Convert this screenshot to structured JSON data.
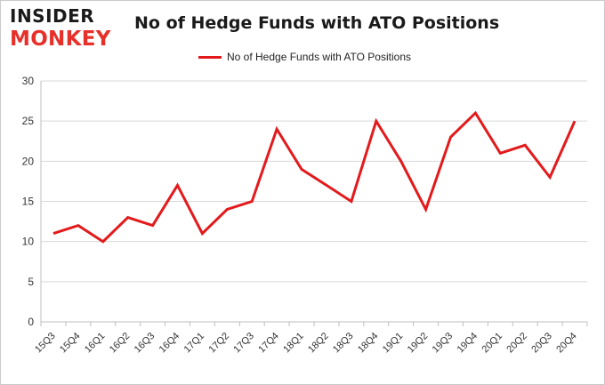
{
  "brand": {
    "logo_top": "INSIDER",
    "logo_bottom": "MONKEY",
    "accent_color": "#e31a1c"
  },
  "chart_data": {
    "type": "line",
    "title": "No of Hedge Funds with ATO Positions",
    "xlabel": "",
    "ylabel": "",
    "categories": [
      "15Q3",
      "15Q4",
      "16Q1",
      "16Q2",
      "16Q3",
      "16Q4",
      "17Q1",
      "17Q2",
      "17Q3",
      "17Q4",
      "18Q1",
      "18Q2",
      "18Q3",
      "18Q4",
      "19Q1",
      "19Q2",
      "19Q3",
      "19Q4",
      "20Q1",
      "20Q2",
      "20Q3",
      "20Q4"
    ],
    "series": [
      {
        "name": "No of Hedge Funds with ATO Positions",
        "color": "#e31a1c",
        "values": [
          11,
          12,
          10,
          13,
          12,
          17,
          11,
          14,
          15,
          24,
          19,
          17,
          15,
          25,
          20,
          14,
          23,
          26,
          21,
          22,
          18,
          25
        ]
      }
    ],
    "ylim": [
      0,
      30
    ],
    "yticks": [
      0,
      5,
      10,
      15,
      20,
      25,
      30
    ],
    "grid": true,
    "legend": "top-center"
  }
}
